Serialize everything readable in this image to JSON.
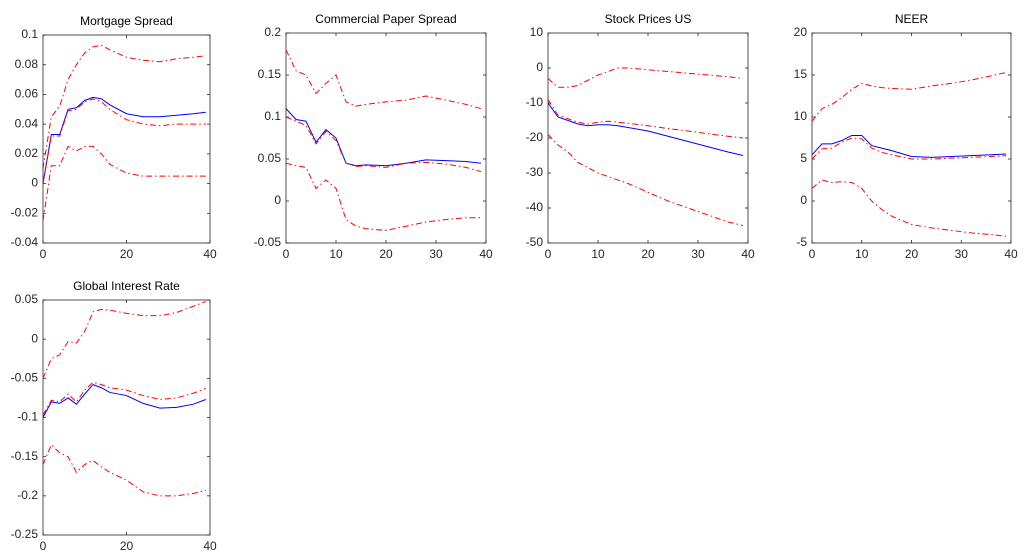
{
  "chart_data": [
    {
      "type": "line",
      "title": "Mortgage Spread",
      "x": [
        0,
        2,
        4,
        6,
        8,
        10,
        12,
        14,
        16,
        20,
        24,
        28,
        32,
        36,
        39
      ],
      "xlim": [
        0,
        40
      ],
      "xticks": [
        0,
        20,
        40
      ],
      "ylim": [
        -0.04,
        0.1
      ],
      "yticks": [
        -0.04,
        -0.02,
        0,
        0.02,
        0.04,
        0.06,
        0.08,
        0.1
      ],
      "series": [
        {
          "color": "#0000ff",
          "style": "solid",
          "values": [
            0,
            0.033,
            0.033,
            0.05,
            0.051,
            0.056,
            0.058,
            0.057,
            0.053,
            0.047,
            0.045,
            0.045,
            0.046,
            0.047,
            0.048
          ]
        },
        {
          "color": "#ff0000",
          "style": "dash-dot",
          "values": [
            0,
            0.032,
            0.032,
            0.049,
            0.05,
            0.055,
            0.057,
            0.055,
            0.05,
            0.043,
            0.04,
            0.039,
            0.04,
            0.04,
            0.04
          ]
        },
        {
          "color": "#ff0000",
          "style": "dash-dot",
          "values": [
            0.01,
            0.045,
            0.052,
            0.07,
            0.08,
            0.088,
            0.092,
            0.093,
            0.09,
            0.085,
            0.083,
            0.082,
            0.084,
            0.085,
            0.086
          ]
        },
        {
          "color": "#ff0000",
          "style": "dash-dot",
          "values": [
            -0.025,
            0.012,
            0.012,
            0.025,
            0.022,
            0.025,
            0.025,
            0.02,
            0.013,
            0.007,
            0.005,
            0.005,
            0.005,
            0.005,
            0.005
          ]
        }
      ]
    },
    {
      "type": "line",
      "title": "Commercial Paper Spread",
      "x": [
        0,
        2,
        4,
        6,
        8,
        10,
        12,
        14,
        16,
        20,
        24,
        28,
        32,
        36,
        39
      ],
      "xlim": [
        0,
        40
      ],
      "xticks": [
        0,
        10,
        20,
        30,
        40
      ],
      "ylim": [
        -0.05,
        0.2
      ],
      "yticks": [
        -0.05,
        0,
        0.05,
        0.1,
        0.15,
        0.2
      ],
      "series": [
        {
          "color": "#0000ff",
          "style": "solid",
          "values": [
            0.11,
            0.097,
            0.095,
            0.07,
            0.085,
            0.075,
            0.045,
            0.042,
            0.043,
            0.042,
            0.045,
            0.049,
            0.048,
            0.047,
            0.045
          ]
        },
        {
          "color": "#ff0000",
          "style": "dash-dot",
          "values": [
            0.1,
            0.095,
            0.09,
            0.068,
            0.083,
            0.072,
            0.045,
            0.041,
            0.042,
            0.04,
            0.045,
            0.046,
            0.044,
            0.04,
            0.035
          ]
        },
        {
          "color": "#ff0000",
          "style": "dash-dot",
          "values": [
            0.18,
            0.155,
            0.15,
            0.128,
            0.14,
            0.15,
            0.118,
            0.113,
            0.115,
            0.118,
            0.12,
            0.125,
            0.12,
            0.115,
            0.11
          ]
        },
        {
          "color": "#ff0000",
          "style": "dash-dot",
          "values": [
            0.045,
            0.042,
            0.04,
            0.015,
            0.025,
            0.015,
            -0.022,
            -0.03,
            -0.033,
            -0.035,
            -0.03,
            -0.025,
            -0.022,
            -0.02,
            -0.02
          ]
        }
      ]
    },
    {
      "type": "line",
      "title": "Stock Prices US",
      "x": [
        0,
        2,
        4,
        6,
        8,
        10,
        12,
        14,
        16,
        20,
        24,
        28,
        32,
        36,
        39
      ],
      "xlim": [
        0,
        40
      ],
      "xticks": [
        0,
        10,
        20,
        30,
        40
      ],
      "ylim": [
        -50,
        10
      ],
      "yticks": [
        -50,
        -40,
        -30,
        -20,
        -10,
        0,
        10
      ],
      "series": [
        {
          "color": "#0000ff",
          "style": "solid",
          "values": [
            -10,
            -14,
            -15,
            -16,
            -16.5,
            -16.2,
            -16.2,
            -16.5,
            -17,
            -18,
            -19.5,
            -21,
            -22.5,
            -24,
            -25
          ]
        },
        {
          "color": "#ff0000",
          "style": "dash-dot",
          "values": [
            -9,
            -13.5,
            -14.5,
            -15.5,
            -16,
            -15.5,
            -15.2,
            -15.5,
            -15.8,
            -16.5,
            -17.3,
            -18,
            -18.8,
            -19.5,
            -20
          ]
        },
        {
          "color": "#ff0000",
          "style": "dash-dot",
          "values": [
            -3,
            -5.5,
            -5.5,
            -5,
            -3.5,
            -2,
            -1,
            0,
            0,
            -0.5,
            -1,
            -1.5,
            -2,
            -2.5,
            -3
          ]
        },
        {
          "color": "#ff0000",
          "style": "dash-dot",
          "values": [
            -19,
            -22,
            -24,
            -27,
            -28.5,
            -30,
            -31,
            -32,
            -33,
            -35.5,
            -38,
            -40,
            -42,
            -44,
            -45
          ]
        }
      ]
    },
    {
      "type": "line",
      "title": "NEER",
      "x": [
        0,
        2,
        4,
        6,
        8,
        10,
        12,
        14,
        16,
        20,
        24,
        28,
        32,
        36,
        39
      ],
      "xlim": [
        0,
        40
      ],
      "xticks": [
        0,
        10,
        20,
        30,
        40
      ],
      "ylim": [
        -5,
        20
      ],
      "yticks": [
        -5,
        0,
        5,
        10,
        15,
        20
      ],
      "series": [
        {
          "color": "#0000ff",
          "style": "solid",
          "values": [
            5.5,
            6.8,
            6.8,
            7.2,
            7.8,
            7.8,
            6.6,
            6.3,
            6,
            5.3,
            5.2,
            5.3,
            5.4,
            5.5,
            5.6
          ]
        },
        {
          "color": "#ff0000",
          "style": "dash-dot",
          "values": [
            5,
            6.2,
            6.3,
            7,
            7.5,
            7.4,
            6.3,
            5.8,
            5.5,
            5,
            5,
            5.1,
            5.2,
            5.3,
            5.4
          ]
        },
        {
          "color": "#ff0000",
          "style": "dash-dot",
          "values": [
            9.5,
            11,
            11.5,
            12.3,
            13.3,
            14,
            13.7,
            13.5,
            13.4,
            13.3,
            13.7,
            14,
            14.4,
            14.9,
            15.3
          ]
        },
        {
          "color": "#ff0000",
          "style": "dash-dot",
          "values": [
            1.5,
            2.5,
            2.2,
            2.3,
            2.2,
            1.5,
            0,
            -1,
            -1.8,
            -2.8,
            -3.2,
            -3.5,
            -3.8,
            -4,
            -4.2
          ]
        }
      ]
    },
    {
      "type": "line",
      "title": "Global Interest Rate",
      "x": [
        0,
        2,
        4,
        6,
        8,
        10,
        12,
        14,
        16,
        20,
        24,
        28,
        32,
        36,
        39
      ],
      "xlim": [
        0,
        40
      ],
      "xticks": [
        0,
        20,
        40
      ],
      "ylim": [
        -0.25,
        0.05
      ],
      "yticks": [
        -0.25,
        -0.2,
        -0.15,
        -0.1,
        -0.05,
        0,
        0.05
      ],
      "series": [
        {
          "color": "#0000ff",
          "style": "solid",
          "values": [
            -0.1,
            -0.08,
            -0.082,
            -0.075,
            -0.083,
            -0.07,
            -0.058,
            -0.062,
            -0.068,
            -0.072,
            -0.082,
            -0.088,
            -0.087,
            -0.083,
            -0.077
          ]
        },
        {
          "color": "#ff0000",
          "style": "dash-dot",
          "values": [
            -0.097,
            -0.078,
            -0.08,
            -0.07,
            -0.08,
            -0.065,
            -0.055,
            -0.058,
            -0.062,
            -0.065,
            -0.072,
            -0.077,
            -0.075,
            -0.069,
            -0.063
          ]
        },
        {
          "color": "#ff0000",
          "style": "dash-dot",
          "values": [
            -0.05,
            -0.025,
            -0.02,
            -0.003,
            -0.005,
            0.01,
            0.035,
            0.038,
            0.037,
            0.033,
            0.03,
            0.03,
            0.034,
            0.042,
            0.048
          ]
        },
        {
          "color": "#ff0000",
          "style": "dash-dot",
          "values": [
            -0.16,
            -0.135,
            -0.145,
            -0.15,
            -0.17,
            -0.16,
            -0.155,
            -0.163,
            -0.17,
            -0.18,
            -0.195,
            -0.2,
            -0.2,
            -0.197,
            -0.193
          ]
        }
      ]
    }
  ]
}
